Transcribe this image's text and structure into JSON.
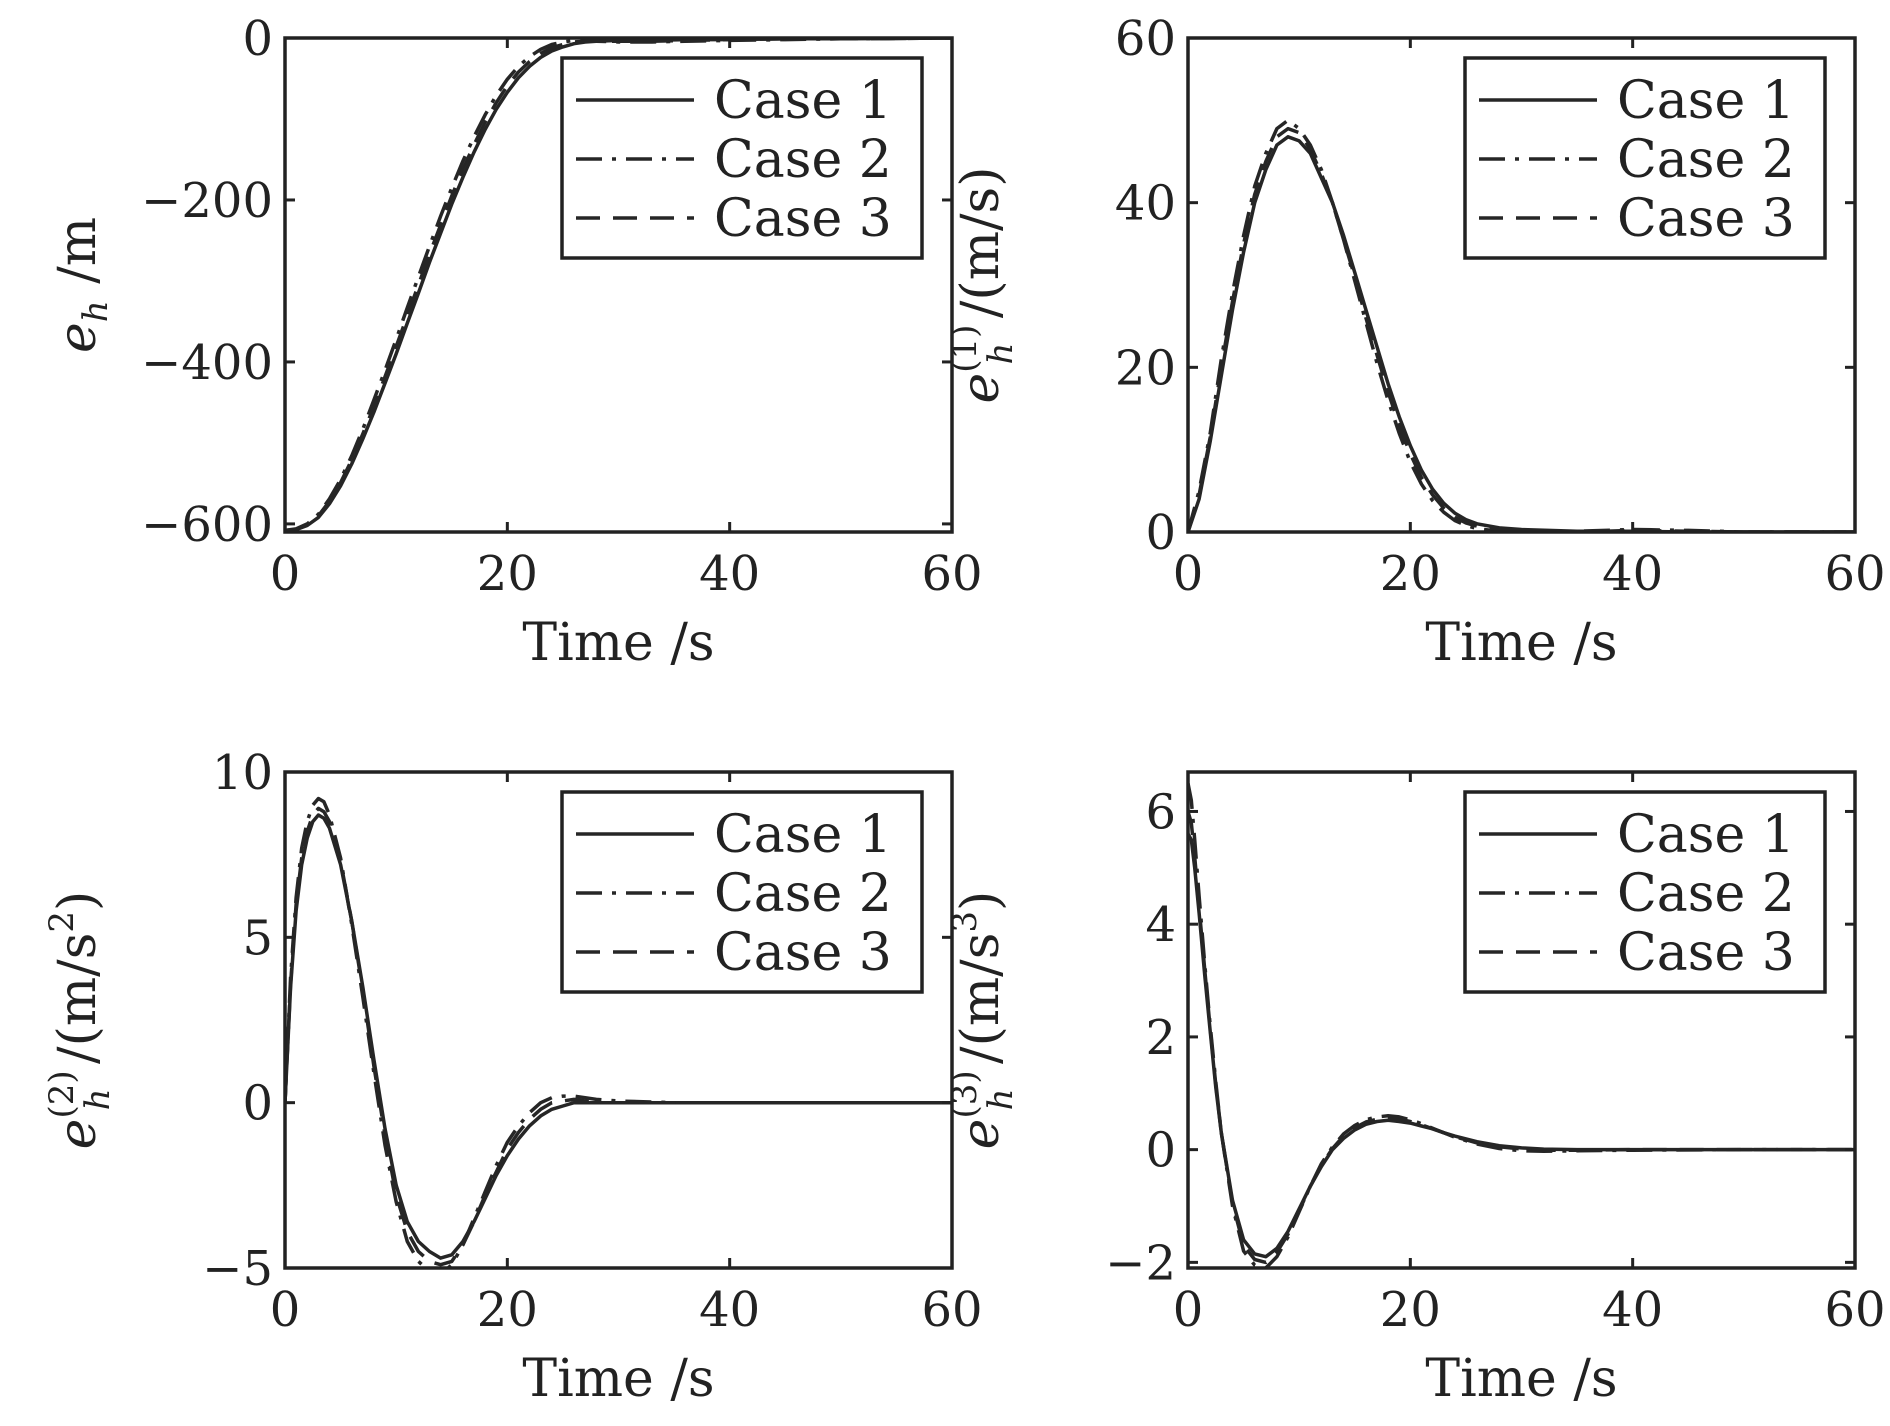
{
  "colors": {
    "line": "#262626",
    "axis": "#222222",
    "background": "#ffffff"
  },
  "chart_data": [
    {
      "type": "line",
      "xlabel": "Time /s",
      "ylabel": {
        "base": "e",
        "sub": "h",
        "sup": "",
        "unit": " /m",
        "unit_sup": "",
        "unit_end": ""
      },
      "xlim": [
        0,
        60
      ],
      "ylim": [
        -610,
        0
      ],
      "xticks": [
        0,
        20,
        40,
        60
      ],
      "yticks": [
        -600,
        -400,
        -200,
        0
      ],
      "xtick_labels": [
        "0",
        "20",
        "40",
        "60"
      ],
      "ytick_labels": [
        "−600",
        "−400",
        "−200",
        "0"
      ],
      "legend": {
        "position": "top-right",
        "entries": [
          "Case 1",
          "Case 2",
          "Case 3"
        ]
      },
      "grid": false,
      "series": [
        {
          "name": "Case 1",
          "dash": "solid",
          "x": [
            0,
            1,
            2,
            3,
            4,
            5,
            6,
            7,
            8,
            9,
            10,
            11,
            12,
            13,
            14,
            15,
            16,
            17,
            18,
            19,
            20,
            21,
            22,
            23,
            24,
            25,
            26,
            27,
            28,
            30,
            33,
            36,
            40,
            45,
            50,
            60
          ],
          "y": [
            -608,
            -607,
            -602,
            -592,
            -575,
            -553,
            -526,
            -495,
            -462,
            -426,
            -390,
            -352,
            -315,
            -277,
            -241,
            -205,
            -172,
            -141,
            -113,
            -88,
            -67,
            -49,
            -35,
            -24,
            -16,
            -11,
            -7,
            -5,
            -4,
            -3,
            -3,
            -2,
            -2,
            -1,
            -1,
            0
          ]
        },
        {
          "name": "Case 2",
          "dash": "dashdot",
          "x": [
            0,
            1,
            2,
            3,
            4,
            5,
            6,
            7,
            8,
            9,
            10,
            11,
            12,
            13,
            14,
            15,
            16,
            17,
            18,
            19,
            20,
            21,
            22,
            23,
            24,
            25,
            26,
            27,
            28,
            30,
            33,
            36,
            40,
            45,
            50,
            60
          ],
          "y": [
            -608,
            -606,
            -600,
            -588,
            -569,
            -545,
            -516,
            -483,
            -447,
            -410,
            -372,
            -333,
            -295,
            -257,
            -220,
            -185,
            -152,
            -122,
            -95,
            -71,
            -51,
            -35,
            -23,
            -14,
            -8,
            -5,
            -3,
            -3,
            -4,
            -5,
            -5,
            -4,
            -3,
            -2,
            -1,
            0
          ]
        },
        {
          "name": "Case 3",
          "dash": "dashed",
          "x": [
            0,
            1,
            2,
            3,
            4,
            5,
            6,
            7,
            8,
            9,
            10,
            11,
            12,
            13,
            14,
            15,
            16,
            17,
            18,
            19,
            20,
            21,
            22,
            23,
            24,
            25,
            26,
            27,
            28,
            30,
            33,
            36,
            40,
            45,
            50,
            60
          ],
          "y": [
            -608,
            -607,
            -601,
            -590,
            -572,
            -549,
            -521,
            -489,
            -455,
            -418,
            -381,
            -343,
            -305,
            -267,
            -231,
            -195,
            -162,
            -132,
            -104,
            -80,
            -59,
            -42,
            -29,
            -19,
            -12,
            -8,
            -5,
            -4,
            -4,
            -4,
            -4,
            -3,
            -2,
            -1,
            -1,
            0
          ]
        }
      ]
    },
    {
      "type": "line",
      "xlabel": "Time /s",
      "ylabel": {
        "base": "e",
        "sub": "h",
        "sup": "(1)",
        "unit": " /(m/s)",
        "unit_sup": "",
        "unit_end": ""
      },
      "xlim": [
        0,
        60
      ],
      "ylim": [
        0,
        60
      ],
      "xticks": [
        0,
        20,
        40,
        60
      ],
      "yticks": [
        0,
        20,
        40,
        60
      ],
      "xtick_labels": [
        "0",
        "20",
        "40",
        "60"
      ],
      "ytick_labels": [
        "0",
        "20",
        "40",
        "60"
      ],
      "legend": {
        "position": "top-right",
        "entries": [
          "Case 1",
          "Case 2",
          "Case 3"
        ]
      },
      "grid": false,
      "series": [
        {
          "name": "Case 1",
          "dash": "solid",
          "x": [
            0,
            1,
            2,
            3,
            4,
            5,
            6,
            7,
            8,
            9,
            10,
            11,
            12,
            13,
            14,
            15,
            16,
            17,
            18,
            19,
            20,
            21,
            22,
            23,
            24,
            25,
            26,
            28,
            30,
            35,
            40,
            45,
            50,
            60
          ],
          "y": [
            0,
            4,
            11,
            19,
            27,
            34,
            40,
            44,
            47,
            48,
            47.5,
            46,
            43,
            40,
            36,
            31.5,
            27,
            22.5,
            18,
            14,
            10.5,
            7.5,
            5.2,
            3.5,
            2.3,
            1.5,
            1,
            0.5,
            0.3,
            0.1,
            0.1,
            0,
            0,
            0
          ]
        },
        {
          "name": "Case 2",
          "dash": "dashdot",
          "x": [
            0,
            1,
            2,
            3,
            4,
            5,
            6,
            7,
            8,
            9,
            10,
            11,
            12,
            13,
            14,
            15,
            16,
            17,
            18,
            19,
            20,
            21,
            22,
            23,
            24,
            25,
            26,
            28,
            30,
            35,
            40,
            45,
            50,
            60
          ],
          "y": [
            0,
            5,
            12,
            21,
            29,
            36,
            42,
            46,
            49,
            50,
            49,
            47,
            44,
            40,
            35.5,
            30.5,
            25.5,
            20.5,
            16,
            12,
            8.5,
            5.8,
            3.8,
            2.4,
            1.4,
            0.8,
            0.4,
            0.1,
            0,
            0.1,
            0.3,
            0.2,
            0,
            0
          ]
        },
        {
          "name": "Case 3",
          "dash": "dashed",
          "x": [
            0,
            1,
            2,
            3,
            4,
            5,
            6,
            7,
            8,
            9,
            10,
            11,
            12,
            13,
            14,
            15,
            16,
            17,
            18,
            19,
            20,
            21,
            22,
            23,
            24,
            25,
            26,
            28,
            30,
            35,
            40,
            45,
            50,
            60
          ],
          "y": [
            0,
            4.5,
            11.5,
            20,
            28,
            35,
            41,
            45,
            48,
            49,
            48.5,
            46.5,
            43.5,
            40,
            35.5,
            31,
            26,
            21.5,
            17,
            13,
            9.5,
            6.6,
            4.5,
            2.9,
            1.8,
            1.1,
            0.7,
            0.3,
            0.1,
            0,
            0.2,
            0.1,
            0,
            0
          ]
        }
      ]
    },
    {
      "type": "line",
      "xlabel": "Time /s",
      "ylabel": {
        "base": "e",
        "sub": "h",
        "sup": "(2)",
        "unit": " /(m/s",
        "unit_sup": "2",
        "unit_end": ")"
      },
      "xlim": [
        0,
        60
      ],
      "ylim": [
        -5,
        10
      ],
      "xticks": [
        0,
        20,
        40,
        60
      ],
      "yticks": [
        -5,
        0,
        5,
        10
      ],
      "xtick_labels": [
        "0",
        "20",
        "40",
        "60"
      ],
      "ytick_labels": [
        "−5",
        "0",
        "5",
        "10"
      ],
      "legend": {
        "position": "top-right",
        "entries": [
          "Case 1",
          "Case 2",
          "Case 3"
        ]
      },
      "grid": false,
      "series": [
        {
          "name": "Case 1",
          "dash": "solid",
          "x": [
            0,
            0.5,
            1,
            1.5,
            2,
            2.5,
            3,
            3.5,
            4,
            5,
            6,
            7,
            8,
            9,
            10,
            11,
            12,
            13,
            14,
            15,
            16,
            17,
            18,
            19,
            20,
            21,
            22,
            23,
            24,
            25,
            26,
            27,
            28,
            30,
            35,
            40,
            60
          ],
          "y": [
            0,
            3.5,
            5.8,
            7.2,
            8,
            8.5,
            8.7,
            8.6,
            8.3,
            7.2,
            5.5,
            3.5,
            1.3,
            -0.8,
            -2.5,
            -3.6,
            -4.2,
            -4.5,
            -4.7,
            -4.6,
            -4.2,
            -3.6,
            -2.9,
            -2.2,
            -1.6,
            -1.1,
            -0.7,
            -0.4,
            -0.2,
            -0.1,
            0,
            0,
            0,
            0,
            0,
            0,
            0
          ]
        },
        {
          "name": "Case 2",
          "dash": "dashdot",
          "x": [
            0,
            0.5,
            1,
            1.5,
            2,
            2.5,
            3,
            3.5,
            4,
            5,
            6,
            7,
            8,
            9,
            10,
            11,
            12,
            13,
            14,
            15,
            16,
            17,
            18,
            19,
            20,
            21,
            22,
            23,
            24,
            25,
            26,
            27,
            28,
            30,
            35,
            40,
            60
          ],
          "y": [
            0,
            3.8,
            6.2,
            7.7,
            8.5,
            9,
            9.2,
            9.1,
            8.7,
            7.4,
            5.4,
            3.2,
            0.9,
            -1.3,
            -3,
            -4.2,
            -4.8,
            -5.1,
            -5.2,
            -4.9,
            -4.3,
            -3.5,
            -2.7,
            -1.9,
            -1.2,
            -0.7,
            -0.3,
            0,
            0.15,
            0.2,
            0.2,
            0.15,
            0.1,
            0.05,
            0,
            0,
            0
          ]
        },
        {
          "name": "Case 3",
          "dash": "dashed",
          "x": [
            0,
            0.5,
            1,
            1.5,
            2,
            2.5,
            3,
            3.5,
            4,
            5,
            6,
            7,
            8,
            9,
            10,
            11,
            12,
            13,
            14,
            15,
            16,
            17,
            18,
            19,
            20,
            21,
            22,
            23,
            24,
            25,
            26,
            27,
            28,
            30,
            35,
            40,
            60
          ],
          "y": [
            0,
            3.6,
            6,
            7.4,
            8.2,
            8.7,
            8.9,
            8.8,
            8.5,
            7.3,
            5.5,
            3.4,
            1.1,
            -1,
            -2.8,
            -3.9,
            -4.5,
            -4.8,
            -4.9,
            -4.8,
            -4.3,
            -3.6,
            -2.8,
            -2.1,
            -1.4,
            -0.9,
            -0.5,
            -0.2,
            0,
            0.05,
            0.1,
            0.05,
            0,
            0,
            0,
            0,
            0
          ]
        }
      ]
    },
    {
      "type": "line",
      "xlabel": "Time /s",
      "ylabel": {
        "base": "e",
        "sub": "h",
        "sup": "(3)",
        "unit": " /(m/s",
        "unit_sup": "3",
        "unit_end": ")"
      },
      "xlim": [
        0,
        60
      ],
      "ylim": [
        -2.1,
        6.7
      ],
      "xticks": [
        0,
        20,
        40,
        60
      ],
      "yticks": [
        -2,
        0,
        2,
        4,
        6
      ],
      "xtick_labels": [
        "0",
        "20",
        "40",
        "60"
      ],
      "ytick_labels": [
        "−2",
        "0",
        "2",
        "4",
        "6"
      ],
      "legend": {
        "position": "top-right",
        "entries": [
          "Case 1",
          "Case 2",
          "Case 3"
        ]
      },
      "grid": false,
      "series": [
        {
          "name": "Case 1",
          "dash": "solid",
          "x": [
            0,
            0.3,
            0.6,
            1,
            1.5,
            2,
            2.5,
            3,
            4,
            5,
            6,
            7,
            8,
            9,
            10,
            11,
            12,
            13,
            14,
            15,
            16,
            17,
            18,
            19,
            20,
            21,
            22,
            23,
            24,
            26,
            28,
            30,
            32,
            35,
            40,
            50,
            60
          ],
          "y": [
            5.6,
            5.5,
            5,
            4.2,
            3.1,
            2.1,
            1.1,
            0.3,
            -0.9,
            -1.6,
            -1.85,
            -1.9,
            -1.75,
            -1.45,
            -1.05,
            -0.65,
            -0.3,
            0,
            0.2,
            0.35,
            0.45,
            0.5,
            0.52,
            0.5,
            0.47,
            0.42,
            0.37,
            0.3,
            0.24,
            0.14,
            0.07,
            0.03,
            0.01,
            0,
            0,
            0,
            0
          ]
        },
        {
          "name": "Case 2",
          "dash": "dashdot",
          "x": [
            0,
            0.3,
            0.6,
            1,
            1.5,
            2,
            2.5,
            3,
            4,
            5,
            6,
            7,
            8,
            9,
            10,
            11,
            12,
            13,
            14,
            15,
            16,
            17,
            18,
            19,
            20,
            21,
            22,
            23,
            24,
            26,
            28,
            30,
            32,
            35,
            40,
            50,
            60
          ],
          "y": [
            6.5,
            6.2,
            5.5,
            4.5,
            3.3,
            2.2,
            1.2,
            0.3,
            -1,
            -1.8,
            -2.05,
            -2.1,
            -1.9,
            -1.55,
            -1.1,
            -0.65,
            -0.25,
            0.05,
            0.28,
            0.43,
            0.53,
            0.58,
            0.6,
            0.58,
            0.53,
            0.46,
            0.38,
            0.3,
            0.22,
            0.1,
            0.02,
            -0.02,
            -0.03,
            -0.02,
            -0.01,
            0,
            0
          ]
        },
        {
          "name": "Case 3",
          "dash": "dashed",
          "x": [
            0,
            0.3,
            0.6,
            1,
            1.5,
            2,
            2.5,
            3,
            4,
            5,
            6,
            7,
            8,
            9,
            10,
            11,
            12,
            13,
            14,
            15,
            16,
            17,
            18,
            19,
            20,
            21,
            22,
            23,
            24,
            26,
            28,
            30,
            32,
            35,
            40,
            50,
            60
          ],
          "y": [
            6,
            5.8,
            5.2,
            4.3,
            3.2,
            2.15,
            1.15,
            0.3,
            -0.95,
            -1.7,
            -1.95,
            -2,
            -1.82,
            -1.5,
            -1.08,
            -0.65,
            -0.28,
            0.02,
            0.24,
            0.39,
            0.49,
            0.54,
            0.56,
            0.54,
            0.5,
            0.44,
            0.37,
            0.3,
            0.23,
            0.12,
            0.05,
            0.01,
            -0.01,
            -0.01,
            0,
            0,
            0
          ]
        }
      ]
    }
  ]
}
